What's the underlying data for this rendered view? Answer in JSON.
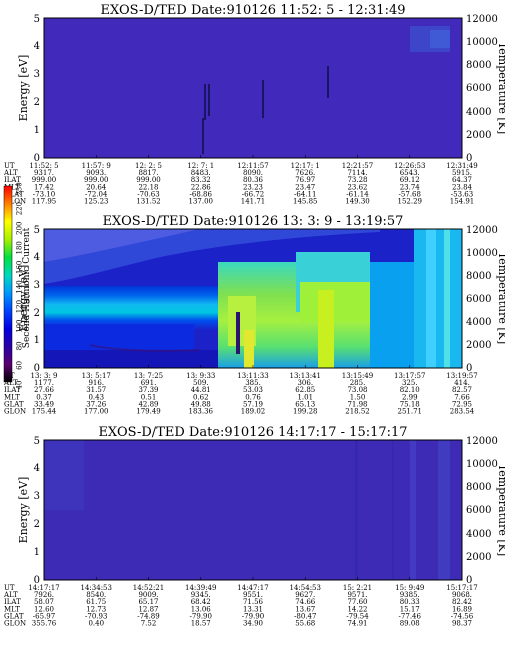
{
  "chart_data": [
    {
      "type": "heatmap",
      "title": "EXOS-D/TED  Date:910126  11:52: 5 - 12:31:49",
      "ylabel": "Energy [eV]",
      "ylabel_right": "Temperature [K]",
      "ylim": [
        0,
        5
      ],
      "y_ticks": [
        "0",
        "1",
        "2",
        "3",
        "4",
        "5"
      ],
      "ylim_right": [
        0,
        12000
      ],
      "y_ticks_right": [
        "0",
        "2000",
        "4000",
        "6000",
        "8000",
        "10000",
        "12000"
      ],
      "table": {
        "rows": [
          "UT",
          "ALT",
          "ILAT",
          "MLT",
          "GLAT",
          "GLON"
        ],
        "columns": [
          [
            "11:52: 5",
            "9317.",
            "999.00",
            "17.42",
            "-73.10",
            "117.95"
          ],
          [
            "11:57: 9",
            "9093.",
            "999.00",
            "20.64",
            "-72.04",
            "125.23"
          ],
          [
            "12: 2: 5",
            "8817.",
            "999.00",
            "22.18",
            "-70.63",
            "131.52"
          ],
          [
            "12: 7: 1",
            "8483.",
            "83.32",
            "22.86",
            "-68.86",
            "137.00"
          ],
          [
            "12:11:57",
            "8090.",
            "80.36",
            "23.23",
            "-66.72",
            "141.71"
          ],
          [
            "12:17: 1",
            "7626.",
            "76.97",
            "23.47",
            "-64.11",
            "145.85"
          ],
          [
            "12:21:57",
            "7114.",
            "73.28",
            "23.62",
            "-61.14",
            "149.30"
          ],
          [
            "12:26:53",
            "6543.",
            "69.12",
            "23.74",
            "-57.68",
            "152.29"
          ],
          [
            "12:31:49",
            "5915.",
            "64.37",
            "23.84",
            "-53.63",
            "154.91"
          ]
        ]
      }
    },
    {
      "type": "heatmap",
      "title": "EXOS-D/TED  Date:910126  13: 3: 9 - 13:19:57",
      "ylabel": "Energy [eV]",
      "ylabel_right": "Temperature [K]",
      "ylim": [
        0,
        5
      ],
      "y_ticks": [
        "0",
        "1",
        "2",
        "3",
        "4",
        "5"
      ],
      "ylim_right": [
        0,
        12000
      ],
      "y_ticks_right": [
        "0",
        "2000",
        "4000",
        "6000",
        "8000",
        "10000",
        "12000"
      ],
      "colorbar": {
        "label": "Second Harmonic Current",
        "ticks": [
          "40",
          "60",
          "80",
          "100",
          "120",
          "140",
          "160",
          "180",
          "200",
          "220",
          "250"
        ],
        "colors": [
          "#000000",
          "#5a0070",
          "#2a00a8",
          "#0000e0",
          "#0044ff",
          "#0099ff",
          "#00d8c0",
          "#00e040",
          "#a8f000",
          "#ffff00",
          "#ff8000",
          "#ff0000"
        ]
      },
      "table": {
        "rows": [
          "UT",
          "ALT",
          "ILAT",
          "MLT",
          "GLAT",
          "GLON"
        ],
        "columns": [
          [
            "13: 3: 9",
            "1177.",
            "27.66",
            "0.37",
            "33.49",
            "175.44"
          ],
          [
            "13: 5:17",
            "916.",
            "31.57",
            "0.43",
            "37.26",
            "177.00"
          ],
          [
            "13: 7:25",
            "691.",
            "37.39",
            "0.51",
            "42.89",
            "179.49"
          ],
          [
            "13: 9:33",
            "509.",
            "44.81",
            "0.62",
            "49.88",
            "183.36"
          ],
          [
            "13:11:33",
            "385.",
            "53.03",
            "0.76",
            "57.19",
            "189.02"
          ],
          [
            "13:13:41",
            "306.",
            "62.85",
            "1.01",
            "65.13",
            "199.28"
          ],
          [
            "13:15:49",
            "285.",
            "73.08",
            "1.50",
            "71.98",
            "218.52"
          ],
          [
            "13:17:57",
            "325.",
            "82.10",
            "2.99",
            "75.18",
            "251.71"
          ],
          [
            "13:19:57",
            "414.",
            "82.57",
            "7.66",
            "72.95",
            "283.54"
          ]
        ]
      }
    },
    {
      "type": "heatmap",
      "title": "EXOS-D/TED  Date:910126  14:17:17 - 15:17:17",
      "ylabel": "Energy [eV]",
      "ylabel_right": "Temperature [K]",
      "ylim": [
        0,
        5
      ],
      "y_ticks": [
        "0",
        "1",
        "2",
        "3",
        "4",
        "5"
      ],
      "ylim_right": [
        0,
        12000
      ],
      "y_ticks_right": [
        "0",
        "2000",
        "4000",
        "6000",
        "8000",
        "10000",
        "12000"
      ],
      "table": {
        "rows": [
          "UT",
          "ALT",
          "ILAT",
          "MLT",
          "GLAT",
          "GLON"
        ],
        "columns": [
          [
            "14:17:17",
            "7926.",
            "58.07",
            "12.60",
            "-65.97",
            "355.76"
          ],
          [
            "14:34:53",
            "8540.",
            "61.75",
            "12.73",
            "-70.93",
            "0.40"
          ],
          [
            "14:52:21",
            "9009.",
            "65.17",
            "12.87",
            "-74.89",
            "7.52"
          ],
          [
            "14:39:49",
            "9345.",
            "68.42",
            "13.06",
            "-79.90",
            "18.57"
          ],
          [
            "14:47:17",
            "9551.",
            "71.56",
            "13.31",
            "-79.90",
            "34.90"
          ],
          [
            "14:54:53",
            "9627.",
            "74.66",
            "13.67",
            "-80.47",
            "55.68"
          ],
          [
            "15: 2:21",
            "9571.",
            "77.60",
            "14.22",
            "-79.54",
            "74.91"
          ],
          [
            "15: 9:49",
            "9385.",
            "80.33",
            "15.17",
            "-77.46",
            "89.08"
          ],
          [
            "15:17:17",
            "9068.",
            "82.42",
            "16.89",
            "-74.56",
            "98.37"
          ]
        ]
      }
    }
  ]
}
